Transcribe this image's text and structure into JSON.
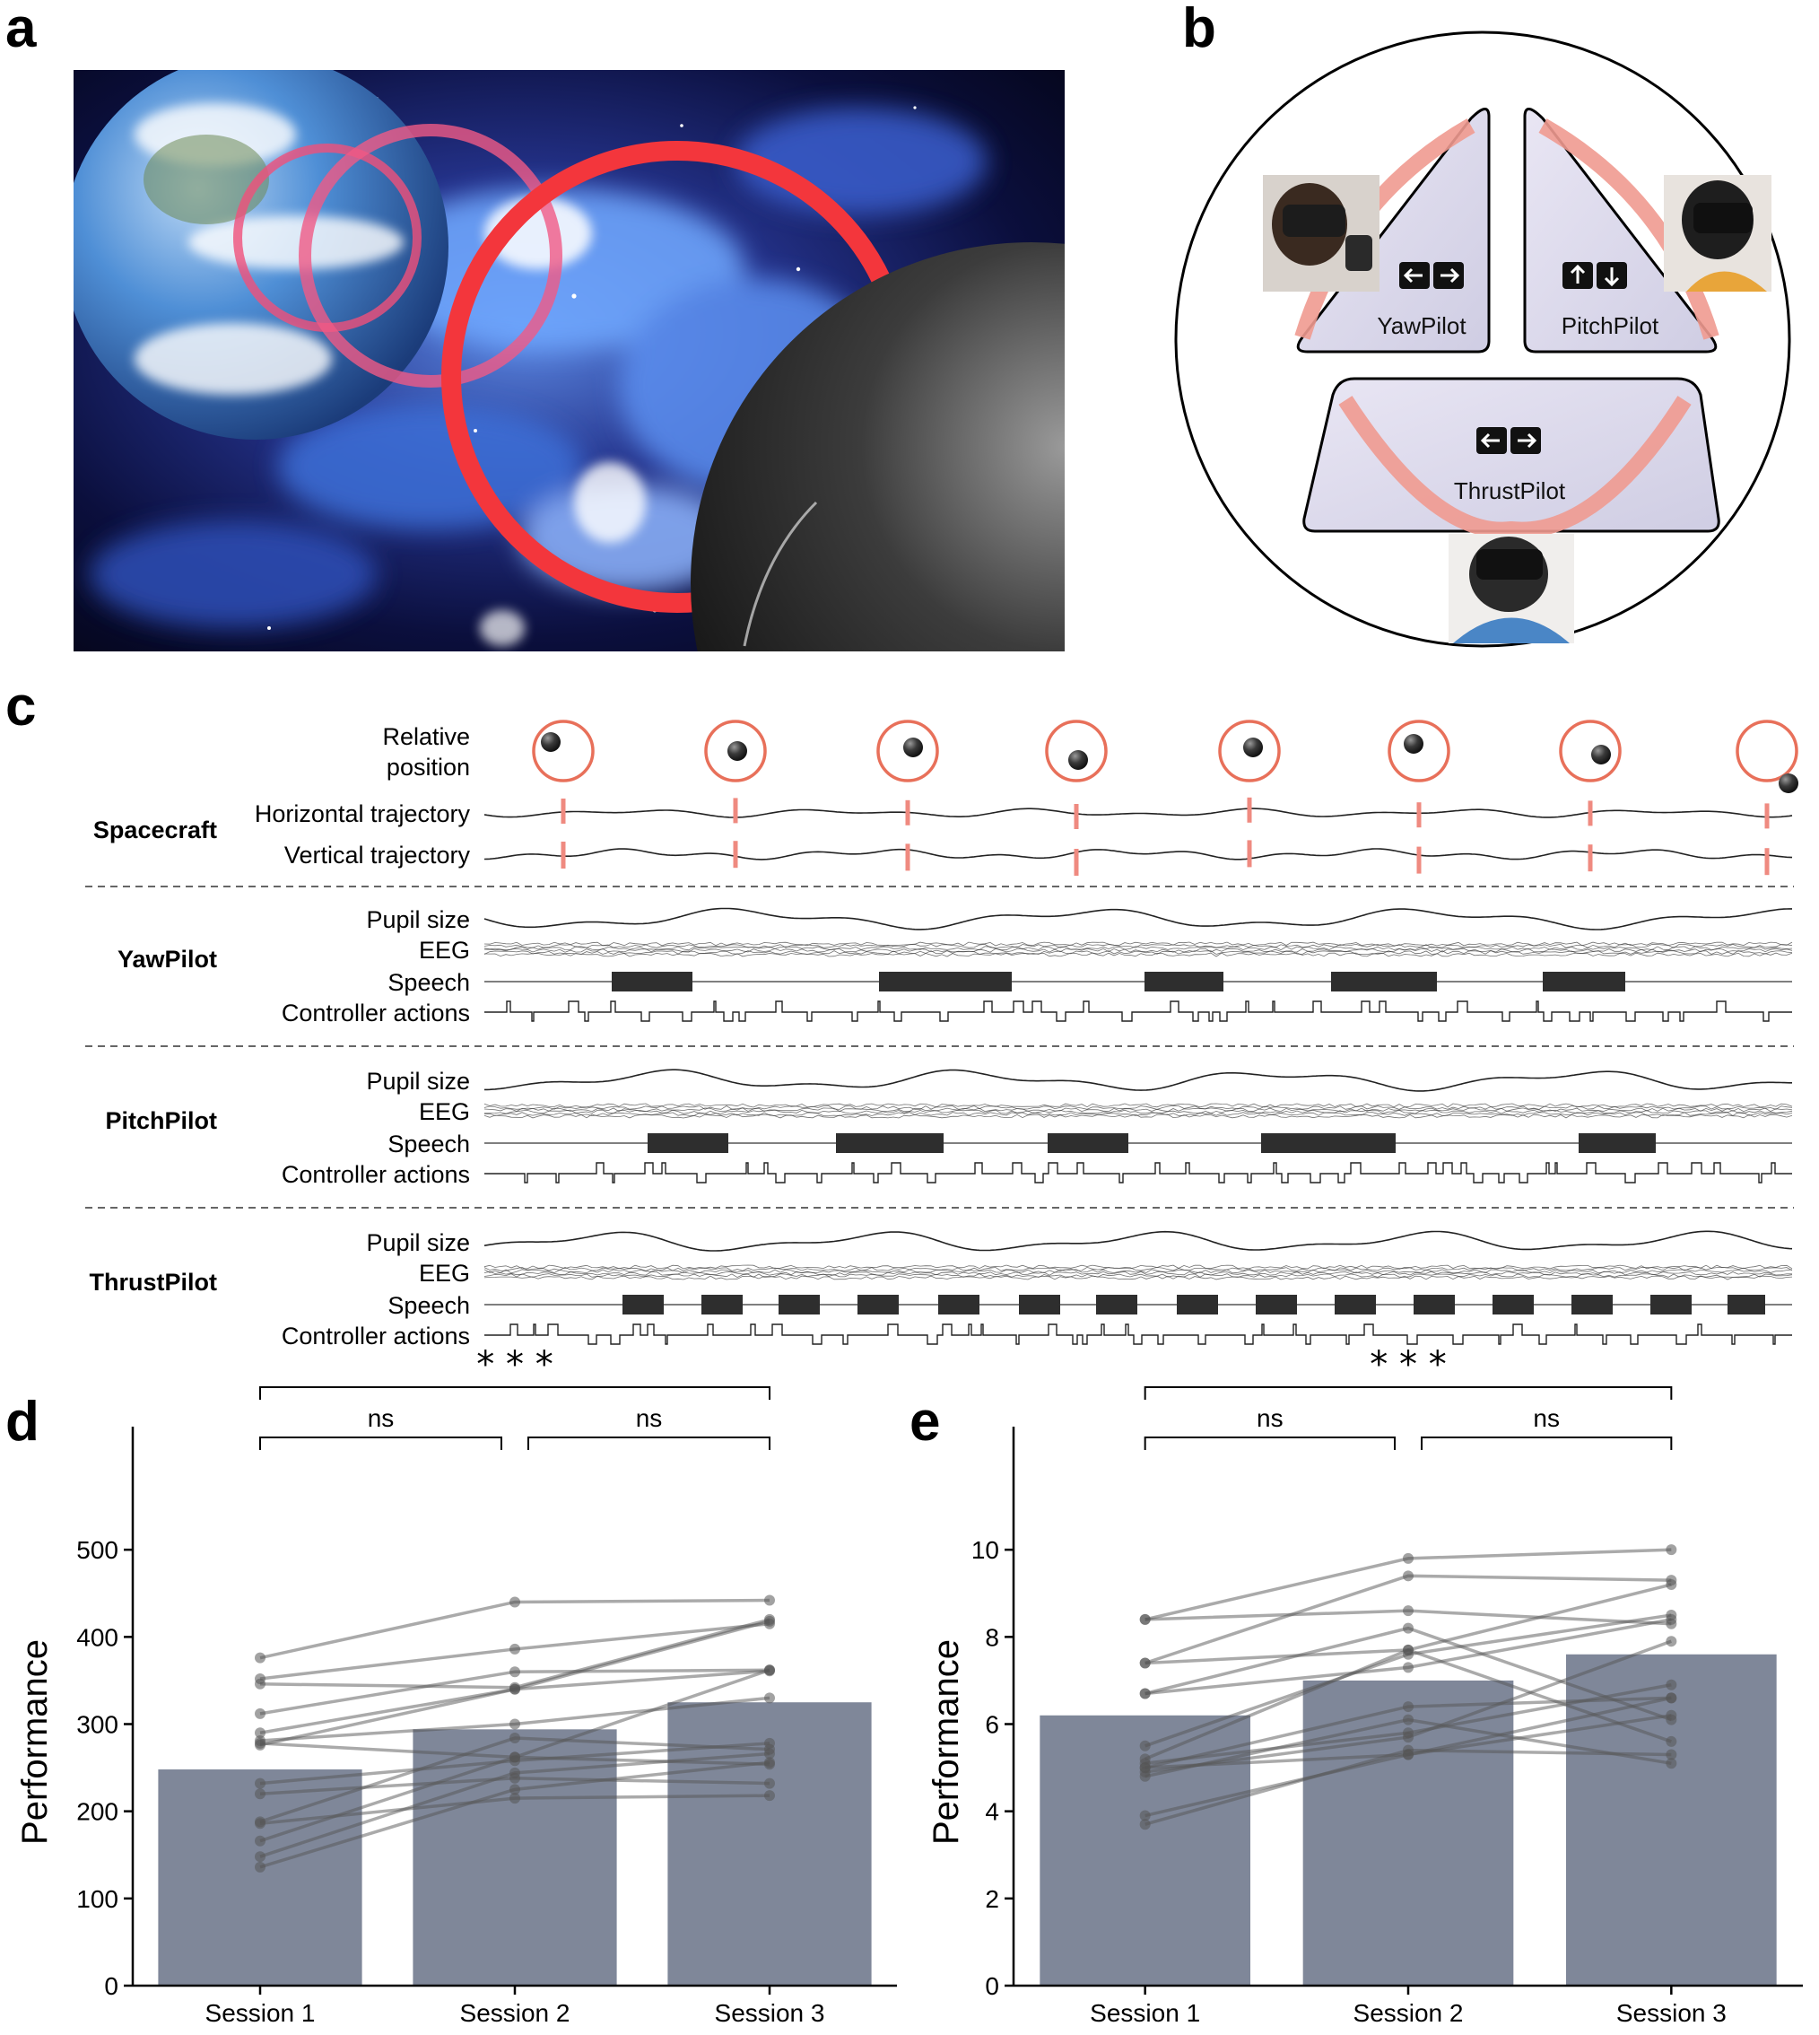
{
  "panel_labels": [
    "a",
    "b",
    "c",
    "d",
    "e"
  ],
  "panel_b": {
    "stations": [
      {
        "name": "YawPilot",
        "icons": [
          "left-arrow-key-icon",
          "right-arrow-key-icon"
        ]
      },
      {
        "name": "PitchPilot",
        "icons": [
          "up-arrow-key-icon",
          "down-arrow-key-icon"
        ]
      },
      {
        "name": "ThrustPilot",
        "icons": [
          "thrust-backward-key-icon",
          "thrust-forward-key-icon"
        ]
      }
    ]
  },
  "panel_c": {
    "spacecraft": {
      "label": "Spacecraft",
      "position_label_line1": "Relative",
      "position_label_line2": "position",
      "rows": [
        "Horizontal trajectory",
        "Vertical trajectory"
      ]
    },
    "pilots": [
      {
        "label": "YawPilot",
        "rows": [
          "Pupil size",
          "EEG",
          "Speech",
          "Controller actions"
        ]
      },
      {
        "label": "PitchPilot",
        "rows": [
          "Pupil size",
          "EEG",
          "Speech",
          "Controller actions"
        ]
      },
      {
        "label": "ThrustPilot",
        "rows": [
          "Pupil size",
          "EEG",
          "Speech",
          "Controller actions"
        ]
      }
    ],
    "ring_color": "#e8705a",
    "marker_color": "#ef8a80"
  },
  "chart_data": [
    {
      "type": "bar",
      "panel": "d",
      "categories": [
        "Session 1",
        "Session 2",
        "Session 3"
      ],
      "values": [
        248,
        294,
        325
      ],
      "ylabel": "Performance",
      "ylim": [
        0,
        600
      ],
      "yticks": [
        0,
        100,
        200,
        300,
        400,
        500
      ],
      "bar_color": "#7f8799",
      "individual_lines": [
        [
          376,
          440,
          442
        ],
        [
          352,
          386,
          415
        ],
        [
          346,
          342,
          420
        ],
        [
          312,
          360,
          362
        ],
        [
          290,
          340,
          418
        ],
        [
          281,
          300,
          330
        ],
        [
          278,
          262,
          254
        ],
        [
          276,
          340,
          361
        ],
        [
          232,
          258,
          278
        ],
        [
          220,
          238,
          232
        ],
        [
          188,
          284,
          271
        ],
        [
          186,
          215,
          218
        ],
        [
          166,
          262,
          362
        ],
        [
          148,
          244,
          266
        ],
        [
          136,
          225,
          256
        ]
      ],
      "comparisons": [
        {
          "from": "Session 1",
          "to": "Session 2",
          "label": "ns"
        },
        {
          "from": "Session 2",
          "to": "Session 3",
          "label": "ns"
        },
        {
          "from": "Session 1",
          "to": "Session 3",
          "label": "* * *"
        }
      ],
      "grid": false
    },
    {
      "type": "bar",
      "panel": "e",
      "categories": [
        "Session 1",
        "Session 2",
        "Session 3"
      ],
      "values": [
        6.2,
        7.0,
        7.6
      ],
      "ylabel": "Performance",
      "ylim": [
        0,
        12
      ],
      "yticks": [
        0,
        2,
        4,
        6,
        8,
        10
      ],
      "bar_color": "#7f8799",
      "individual_lines": [
        [
          8.4,
          9.8,
          10.0
        ],
        [
          8.4,
          8.6,
          8.3
        ],
        [
          7.4,
          9.4,
          9.3
        ],
        [
          7.4,
          7.7,
          9.2
        ],
        [
          6.7,
          7.3,
          8.4
        ],
        [
          6.7,
          8.2,
          6.1
        ],
        [
          5.5,
          7.6,
          8.5
        ],
        [
          5.1,
          5.8,
          6.9
        ],
        [
          5.0,
          6.4,
          6.6
        ],
        [
          4.9,
          5.7,
          7.9
        ],
        [
          3.9,
          5.3,
          6.6
        ],
        [
          3.7,
          5.4,
          5.3
        ],
        [
          5.2,
          7.7,
          5.6
        ],
        [
          4.8,
          6.1,
          5.1
        ],
        [
          5.0,
          5.3,
          6.2
        ]
      ],
      "comparisons": [
        {
          "from": "Session 1",
          "to": "Session 2",
          "label": "ns"
        },
        {
          "from": "Session 2",
          "to": "Session 3",
          "label": "ns"
        },
        {
          "from": "Session 1",
          "to": "Session 3",
          "label": "* * *"
        }
      ],
      "grid": false
    }
  ]
}
